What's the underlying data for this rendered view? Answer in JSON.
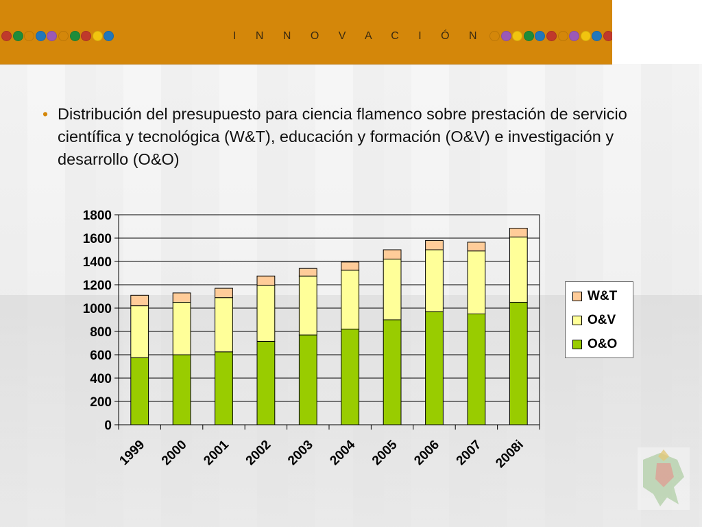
{
  "header": {
    "title": "I N N O V A C I Ó N",
    "dots_left": [
      "#c0392b",
      "#1e8c3a",
      "#d4870a",
      "#2277bb",
      "#9b59b6",
      "#d4870a",
      "#1e8c3a",
      "#c0392b",
      "#f1c40f",
      "#2277bb"
    ],
    "dots_right": [
      "#d4870a",
      "#9b59b6",
      "#f1c40f",
      "#1e8c3a",
      "#2277bb",
      "#c0392b",
      "#d4870a",
      "#9b59b6",
      "#f1c40f",
      "#2277bb",
      "#c0392b",
      "#1e8c3a",
      "#2277bb",
      "#9b59b6",
      "#d4870a",
      "#1e8c3a",
      "#c0392b"
    ]
  },
  "bullet": {
    "text": "Distribución del presupuesto para ciencia flamenco sobre prestación de servicio científica y tecnológica (W&T), educación y formación (O&V) e investigación y desarrollo (O&O)"
  },
  "chart_data": {
    "type": "bar",
    "stacked": true,
    "categories": [
      "1999",
      "2000",
      "2001",
      "2002",
      "2003",
      "2004",
      "2005",
      "2006",
      "2007",
      "2008i"
    ],
    "series": [
      {
        "name": "O&O",
        "color": "#99cc00",
        "values": [
          575,
          600,
          625,
          715,
          770,
          820,
          900,
          970,
          950,
          1050
        ]
      },
      {
        "name": "O&V",
        "color": "#ffff99",
        "values": [
          445,
          450,
          465,
          480,
          505,
          505,
          520,
          530,
          540,
          560
        ]
      },
      {
        "name": "W&T",
        "color": "#ffcc99",
        "values": [
          90,
          80,
          80,
          80,
          65,
          70,
          80,
          80,
          75,
          75
        ]
      }
    ],
    "ylim": [
      0,
      1800
    ],
    "yticks": [
      0,
      200,
      400,
      600,
      800,
      1000,
      1200,
      1400,
      1600,
      1800
    ],
    "grid": true,
    "legend": {
      "position": "right",
      "items": [
        {
          "label": "W&T",
          "color": "#ffcc99"
        },
        {
          "label": "O&V",
          "color": "#ffff99"
        },
        {
          "label": "O&O",
          "color": "#99cc00"
        }
      ]
    }
  }
}
